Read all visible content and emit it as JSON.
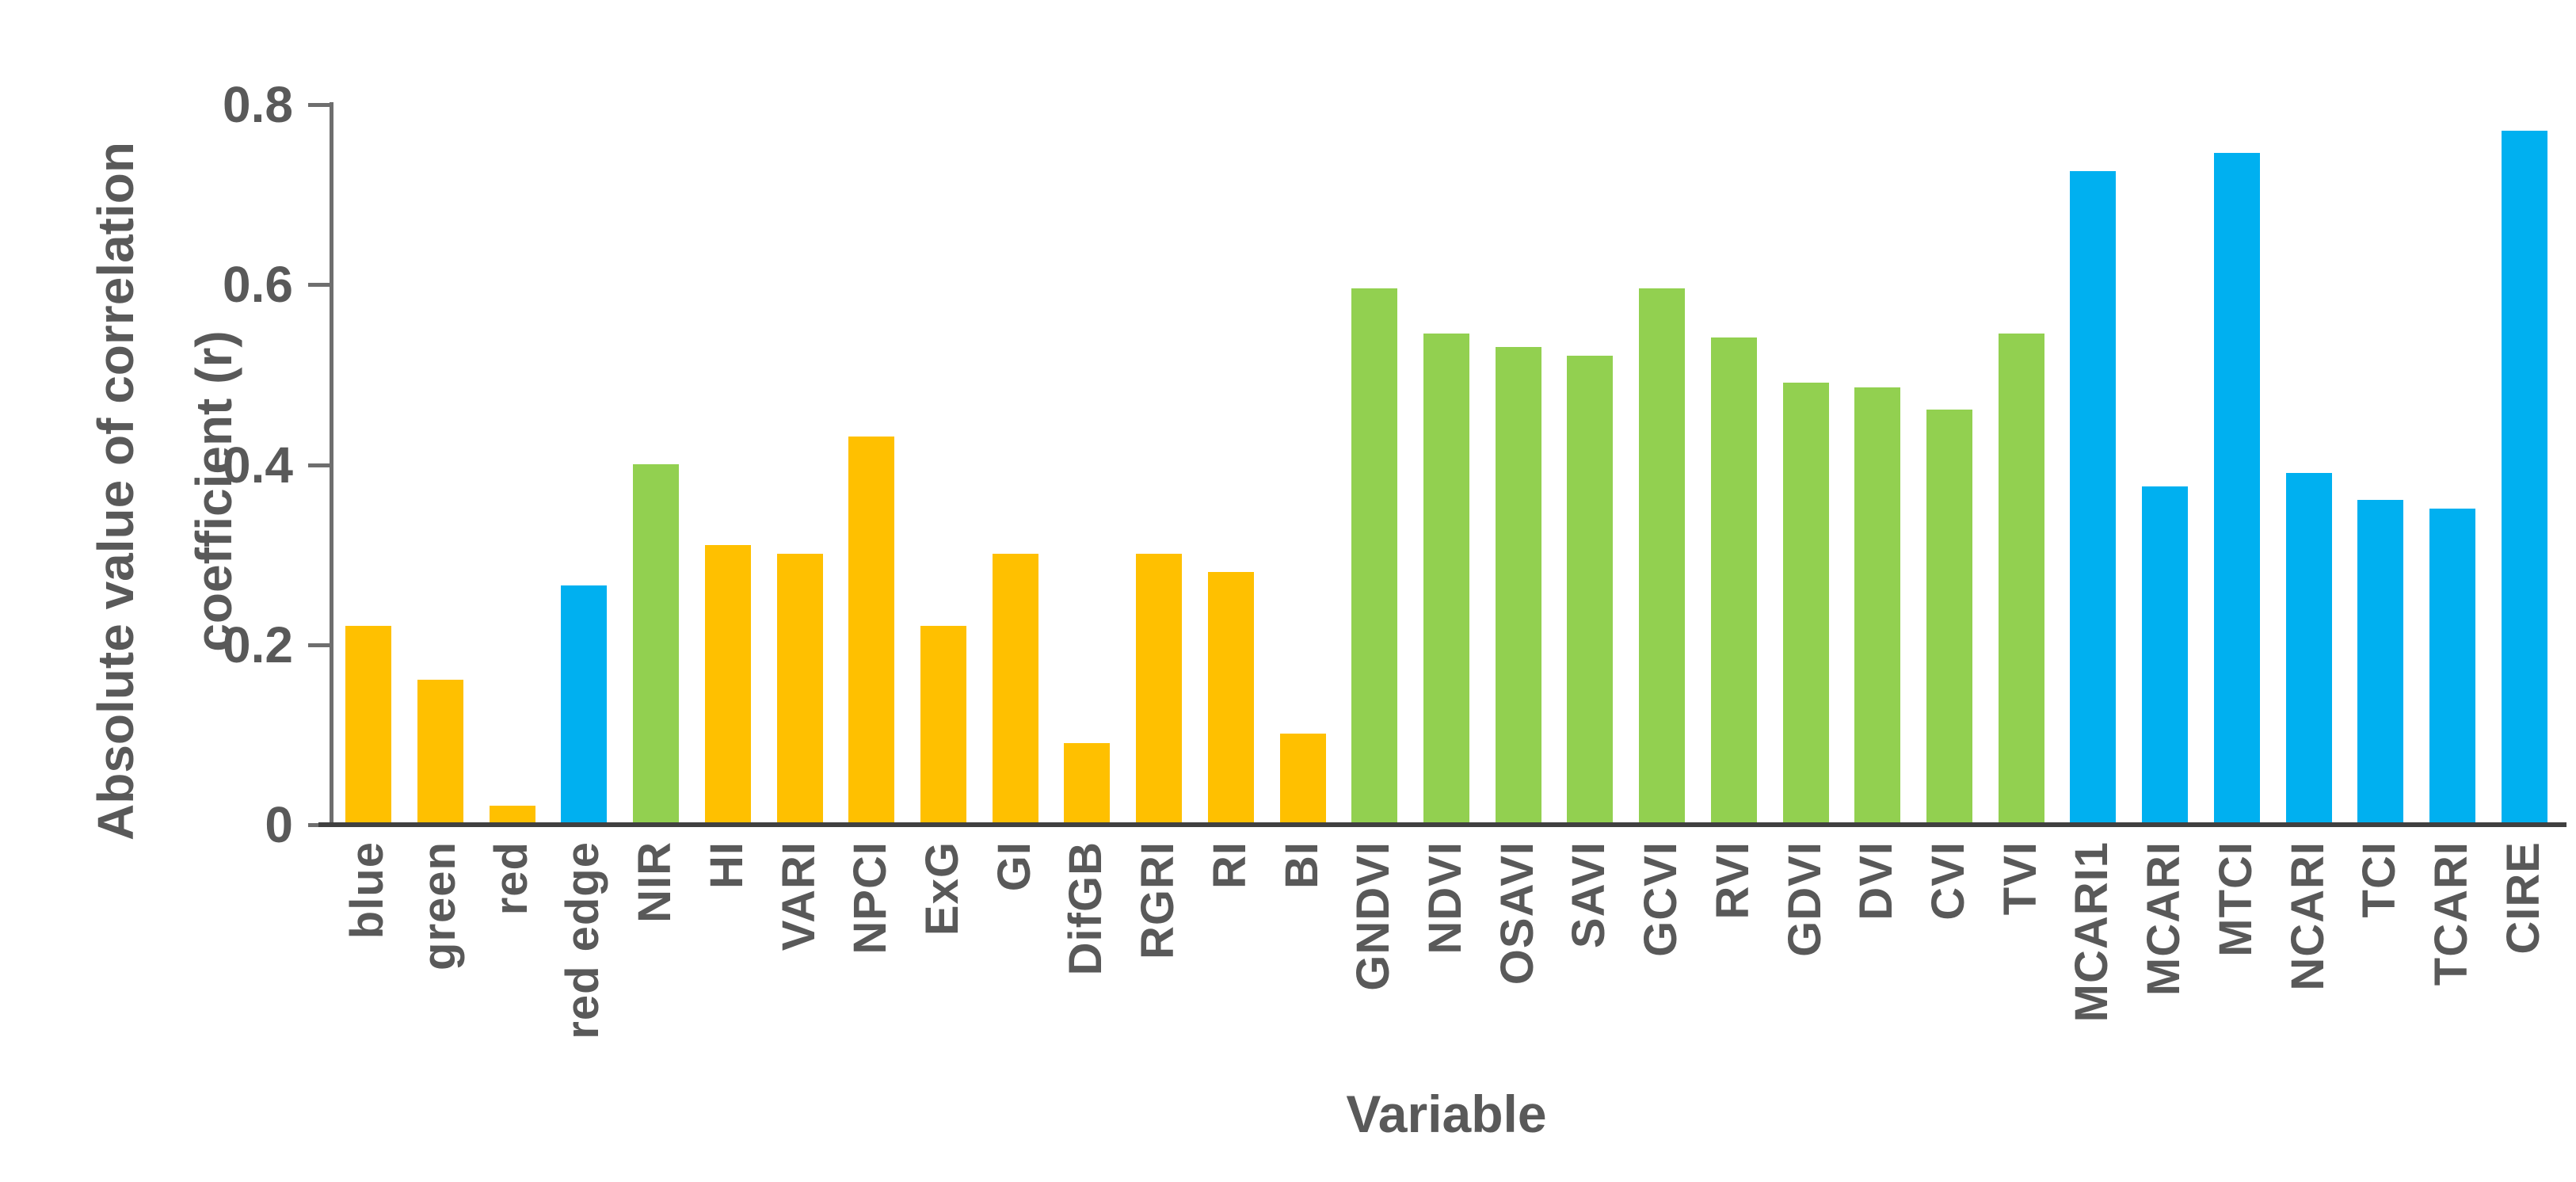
{
  "chart_data": {
    "type": "bar",
    "title": "",
    "xlabel": "Variable",
    "ylabel": "Absolute value of correlation coefficient (r)",
    "ylabel_lines": [
      "Absolute value of correlation",
      "coefficient (r)"
    ],
    "ylim": [
      0,
      0.8
    ],
    "yticks": [
      0,
      0.2,
      0.4,
      0.6,
      0.8
    ],
    "ytick_labels": [
      "0",
      "0.2",
      "0.4",
      "0.6",
      "0.8"
    ],
    "grid": false,
    "legend_position": "none",
    "categories": [
      "blue",
      "green",
      "red",
      "red edge",
      "NIR",
      "HI",
      "VARI",
      "NPCI",
      "ExG",
      "GI",
      "DifGB",
      "RGRI",
      "RI",
      "BI",
      "GNDVI",
      "NDVI",
      "OSAVI",
      "SAVI",
      "GCVI",
      "RVI",
      "GDVI",
      "DVI",
      "CVI",
      "TVI",
      "MCARI1",
      "MCARI",
      "MTCI",
      "NCARI",
      "TCI",
      "TCARI",
      "CIRE"
    ],
    "values": [
      0.22,
      0.16,
      0.02,
      0.265,
      0.4,
      0.31,
      0.3,
      0.43,
      0.22,
      0.3,
      0.09,
      0.3,
      0.28,
      0.1,
      0.595,
      0.545,
      0.53,
      0.52,
      0.595,
      0.54,
      0.49,
      0.485,
      0.46,
      0.545,
      0.725,
      0.375,
      0.745,
      0.39,
      0.36,
      0.35,
      0.77
    ],
    "color_keys": [
      "yellow",
      "yellow",
      "yellow",
      "blue",
      "green",
      "yellow",
      "yellow",
      "yellow",
      "yellow",
      "yellow",
      "yellow",
      "yellow",
      "yellow",
      "yellow",
      "green",
      "green",
      "green",
      "green",
      "green",
      "green",
      "green",
      "green",
      "green",
      "green",
      "blue",
      "blue",
      "blue",
      "blue",
      "blue",
      "blue",
      "blue"
    ],
    "palette": {
      "yellow": "#FFC000",
      "green": "#92D050",
      "blue": "#00B0F0"
    }
  },
  "colors": {
    "text": "#595959",
    "y_axis_line": "#6e6e6e",
    "x_axis_line": "#404040",
    "background": "#ffffff"
  }
}
